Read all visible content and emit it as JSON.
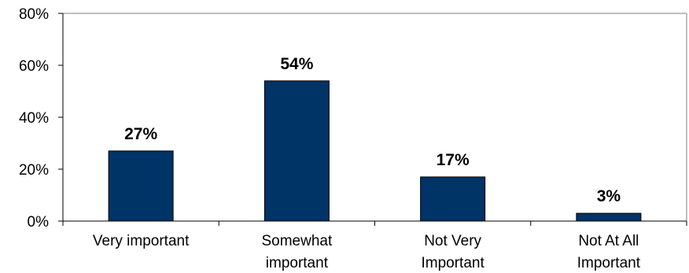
{
  "chart_data": {
    "type": "bar",
    "categories": [
      [
        "Very important"
      ],
      [
        "Somewhat",
        "important"
      ],
      [
        "Not Very",
        "Important"
      ],
      [
        "Not At All",
        "Important"
      ]
    ],
    "values": [
      27,
      54,
      17,
      3
    ],
    "data_labels": [
      "27%",
      "54%",
      "17%",
      "3%"
    ],
    "title": "",
    "xlabel": "",
    "ylabel": "",
    "ylim": [
      0,
      80
    ],
    "yticks": [
      0,
      20,
      40,
      60,
      80
    ],
    "ytick_labels": [
      "0%",
      "20%",
      "40%",
      "60%",
      "80%"
    ],
    "grid": false,
    "legend": "none",
    "bar_color": "#003366"
  }
}
